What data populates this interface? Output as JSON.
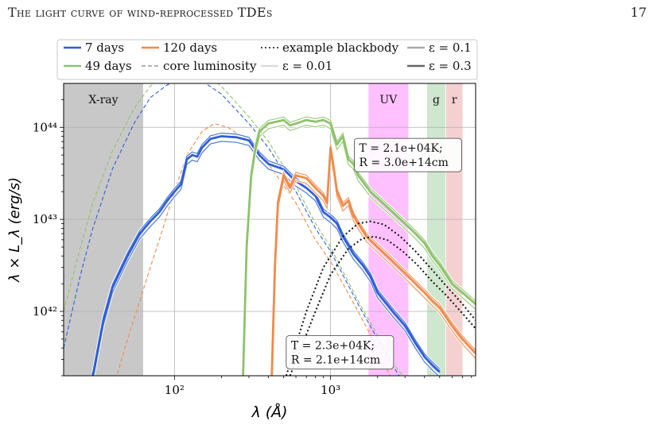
{
  "page": {
    "running_title": "The light curve of wind-reprocessed TDEs",
    "page_number": "17"
  },
  "chart_data": {
    "type": "line",
    "xlabel": "λ (Å)",
    "ylabel": "λ × L_λ (erg/s)",
    "xscale": "log",
    "yscale": "log",
    "xlim": [
      19.5,
      8500
    ],
    "ylim": [
      2e+41,
      3e+44
    ],
    "xticks": [
      {
        "value": 100,
        "label": "10²"
      },
      {
        "value": 1000,
        "label": "10³"
      }
    ],
    "yticks": [
      {
        "value": 1e+42,
        "label": "10⁴²"
      },
      {
        "value": 1e+43,
        "label": "10⁴³"
      },
      {
        "value": 1e+44,
        "label": "10⁴⁴"
      }
    ],
    "grid": true,
    "legend_position": "top",
    "bands": [
      {
        "label": "X-ray",
        "x0": 19.5,
        "x1": 63,
        "color": "#c8c8c8"
      },
      {
        "label": "UV",
        "x0": 1750,
        "x1": 3150,
        "color": "#ffc0ff"
      },
      {
        "label": "g",
        "x0": 4150,
        "x1": 5450,
        "color": "#cfe6cf"
      },
      {
        "label": "r",
        "x0": 5500,
        "x1": 7000,
        "color": "#f5d0d0"
      }
    ],
    "legend": [
      {
        "label": "7 days",
        "style": "solid",
        "color": "#2e5fd6"
      },
      {
        "label": "49 days",
        "style": "solid",
        "color": "#8ec26b"
      },
      {
        "label": "120 days",
        "style": "solid",
        "color": "#f08a4b"
      },
      {
        "label": "core luminosity",
        "style": "dashed",
        "color": "#999999"
      },
      {
        "label": "example blackbody",
        "style": "dotted",
        "color": "#111111"
      },
      {
        "label": "ε = 0.01",
        "style": "solid",
        "color": "#dddddd"
      },
      {
        "label": "ε = 0.1",
        "style": "solid",
        "color": "#a9a9a9"
      },
      {
        "label": "ε = 0.3",
        "style": "solid",
        "color": "#666666"
      }
    ],
    "annotations": [
      {
        "text": [
          "T = 2.1e+04K;",
          "R = 3.0e+14cm"
        ],
        "x": 1420,
        "y": 5e+43
      },
      {
        "text": [
          "T = 2.3e+04K;",
          "R = 2.1e+14cm"
        ],
        "x": 520,
        "y": 3.6e+41
      }
    ],
    "series": [
      {
        "name": "7 days",
        "group": "core",
        "style": "dashed",
        "color": "#2e5fd6",
        "points": [
          [
            19.5,
            4e+41
          ],
          [
            25,
            2.5e+42
          ],
          [
            30,
            8e+42
          ],
          [
            40,
            3.5e+43
          ],
          [
            55,
            1.1e+44
          ],
          [
            70,
            2.1e+44
          ],
          [
            90,
            2.9e+44
          ],
          [
            110,
            3.3e+44
          ],
          [
            130,
            3.35e+44
          ],
          [
            150,
            3.2e+44
          ],
          [
            200,
            2.3e+44
          ],
          [
            300,
            1.1e+44
          ],
          [
            400,
            6e+43
          ],
          [
            600,
            2e+43
          ],
          [
            800,
            8e+42
          ],
          [
            1000,
            4.5e+42
          ],
          [
            1500,
            1.2e+42
          ],
          [
            2000,
            5e+41
          ],
          [
            2500,
            2.6e+41
          ],
          [
            2800,
            1.9e+41
          ]
        ]
      },
      {
        "name": "49 days",
        "group": "core",
        "style": "dashed",
        "color": "#8ec26b",
        "points": [
          [
            19.5,
            1e+42
          ],
          [
            25,
            5e+42
          ],
          [
            30,
            1.5e+43
          ],
          [
            40,
            5.5e+43
          ],
          [
            55,
            1.6e+44
          ],
          [
            70,
            2.8e+44
          ],
          [
            90,
            3.8e+44
          ],
          [
            110,
            4.2e+44
          ],
          [
            130,
            4.25e+44
          ],
          [
            150,
            4e+44
          ],
          [
            200,
            2.8e+44
          ],
          [
            300,
            1.3e+44
          ],
          [
            400,
            7e+43
          ],
          [
            600,
            2.3e+43
          ],
          [
            800,
            9e+42
          ],
          [
            1000,
            5e+42
          ],
          [
            1500,
            1.3e+42
          ],
          [
            2000,
            5.5e+41
          ],
          [
            2500,
            2.8e+41
          ],
          [
            2900,
            2e+41
          ]
        ]
      },
      {
        "name": "120 days",
        "group": "core",
        "style": "dashed",
        "color": "#f08a4b",
        "points": [
          [
            42,
            1.8e+41
          ],
          [
            50,
            5e+41
          ],
          [
            60,
            1.3e+42
          ],
          [
            70,
            3e+42
          ],
          [
            80,
            6e+42
          ],
          [
            100,
            2e+43
          ],
          [
            120,
            5e+43
          ],
          [
            150,
            9e+43
          ],
          [
            180,
            1.1e+44
          ],
          [
            220,
            1e+44
          ],
          [
            300,
            7e+43
          ],
          [
            400,
            4e+43
          ],
          [
            600,
            1.5e+43
          ],
          [
            800,
            6e+42
          ],
          [
            1000,
            3.5e+42
          ],
          [
            1500,
            1e+42
          ],
          [
            2000,
            4e+41
          ],
          [
            2400,
            2e+41
          ]
        ]
      },
      {
        "name": "7 days",
        "group": "spectrum",
        "style": "solid",
        "color": "#2e5fd6",
        "points": [
          [
            30,
            2e+41
          ],
          [
            35,
            8e+41
          ],
          [
            40,
            1.8e+42
          ],
          [
            50,
            4e+42
          ],
          [
            60,
            7e+42
          ],
          [
            70,
            9.5e+42
          ],
          [
            80,
            1.2e+43
          ],
          [
            90,
            1.6e+43
          ],
          [
            100,
            2e+43
          ],
          [
            110,
            2.4e+43
          ],
          [
            120,
            4.5e+43
          ],
          [
            130,
            5e+43
          ],
          [
            140,
            4.8e+43
          ],
          [
            150,
            6e+43
          ],
          [
            170,
            7.5e+43
          ],
          [
            200,
            8e+43
          ],
          [
            250,
            7.8e+43
          ],
          [
            300,
            7.2e+43
          ],
          [
            350,
            5e+43
          ],
          [
            400,
            4e+43
          ],
          [
            500,
            3.5e+43
          ],
          [
            600,
            2.6e+43
          ],
          [
            700,
            2.2e+43
          ],
          [
            800,
            1.8e+43
          ],
          [
            900,
            1.2e+43
          ],
          [
            1000,
            1.05e+43
          ],
          [
            1100,
            9e+42
          ],
          [
            1200,
            6.5e+42
          ],
          [
            1400,
            4.2e+42
          ],
          [
            1600,
            3.2e+42
          ],
          [
            1800,
            2.4e+42
          ],
          [
            2000,
            1.6e+42
          ],
          [
            2500,
            1e+42
          ],
          [
            3000,
            7e+41
          ],
          [
            3500,
            4.5e+41
          ],
          [
            4000,
            3.2e+41
          ],
          [
            4500,
            2.6e+41
          ],
          [
            5000,
            2.2e+41
          ]
        ]
      },
      {
        "name": "49 days",
        "group": "spectrum",
        "style": "solid",
        "color": "#8ec26b",
        "points": [
          [
            275,
            2e+41
          ],
          [
            290,
            5e+42
          ],
          [
            310,
            3e+43
          ],
          [
            330,
            6e+43
          ],
          [
            350,
            9e+43
          ],
          [
            400,
            1.1e+44
          ],
          [
            450,
            1.15e+44
          ],
          [
            500,
            1.2e+44
          ],
          [
            550,
            1.05e+44
          ],
          [
            600,
            1.1e+44
          ],
          [
            700,
            1.2e+44
          ],
          [
            800,
            1.15e+44
          ],
          [
            900,
            1.2e+44
          ],
          [
            1000,
            1.1e+44
          ],
          [
            1100,
            6.5e+43
          ],
          [
            1200,
            8e+43
          ],
          [
            1300,
            4.5e+43
          ],
          [
            1400,
            4e+43
          ],
          [
            1500,
            3e+43
          ],
          [
            1600,
            2.6e+43
          ],
          [
            1800,
            2e+43
          ],
          [
            2000,
            1.7e+43
          ],
          [
            2500,
            1.2e+43
          ],
          [
            3000,
            9e+42
          ],
          [
            3500,
            7e+42
          ],
          [
            4000,
            5.5e+42
          ],
          [
            4500,
            4e+42
          ],
          [
            5000,
            3.2e+42
          ],
          [
            5500,
            2.5e+42
          ],
          [
            6000,
            2e+42
          ],
          [
            7000,
            1.6e+42
          ],
          [
            8500,
            1.2e+42
          ]
        ]
      },
      {
        "name": "120 days",
        "group": "spectrum",
        "style": "solid",
        "color": "#f08a4b",
        "points": [
          [
            420,
            2e+41
          ],
          [
            440,
            3e+42
          ],
          [
            460,
            1.5e+43
          ],
          [
            500,
            3e+43
          ],
          [
            550,
            2.2e+43
          ],
          [
            600,
            3e+43
          ],
          [
            700,
            2.8e+43
          ],
          [
            800,
            2.2e+43
          ],
          [
            900,
            1.8e+43
          ],
          [
            950,
            1.5e+43
          ],
          [
            1000,
            6e+43
          ],
          [
            1050,
            3.5e+43
          ],
          [
            1100,
            2e+43
          ],
          [
            1200,
            1.4e+43
          ],
          [
            1300,
            1.6e+43
          ],
          [
            1400,
            1.1e+43
          ],
          [
            1500,
            9e+42
          ],
          [
            1700,
            6.5e+42
          ],
          [
            2000,
            5e+42
          ],
          [
            2500,
            3.5e+42
          ],
          [
            3000,
            2.6e+42
          ],
          [
            3500,
            2e+42
          ],
          [
            4000,
            1.6e+42
          ],
          [
            4500,
            1.3e+42
          ],
          [
            5000,
            1.1e+42
          ],
          [
            6000,
            7e+41
          ],
          [
            7000,
            5e+41
          ],
          [
            8500,
            3.5e+41
          ]
        ]
      },
      {
        "name": "",
        "group": "blackbody",
        "style": "dotted",
        "color": "#111111",
        "points": [
          [
            520,
            2e+41
          ],
          [
            700,
            1e+42
          ],
          [
            900,
            3e+42
          ],
          [
            1200,
            6.5e+42
          ],
          [
            1500,
            9e+42
          ],
          [
            1800,
            9.5e+42
          ],
          [
            2200,
            8.8e+42
          ],
          [
            2800,
            6.5e+42
          ],
          [
            3500,
            4.5e+42
          ],
          [
            4500,
            2.8e+42
          ],
          [
            5500,
            1.9e+42
          ],
          [
            7000,
            1.2e+42
          ],
          [
            8500,
            8e+41
          ]
        ]
      },
      {
        "name": "",
        "group": "blackbody",
        "style": "dotted",
        "color": "#111111",
        "points": [
          [
            550,
            2e+41
          ],
          [
            800,
            1e+42
          ],
          [
            1000,
            2.5e+42
          ],
          [
            1300,
            4.8e+42
          ],
          [
            1600,
            6.2e+42
          ],
          [
            1900,
            6.5e+42
          ],
          [
            2300,
            6e+42
          ],
          [
            2900,
            4.5e+42
          ],
          [
            3600,
            3.2e+42
          ],
          [
            4500,
            2.1e+42
          ],
          [
            5500,
            1.5e+42
          ],
          [
            7000,
            9.5e+41
          ],
          [
            8500,
            6.5e+41
          ]
        ]
      }
    ]
  }
}
